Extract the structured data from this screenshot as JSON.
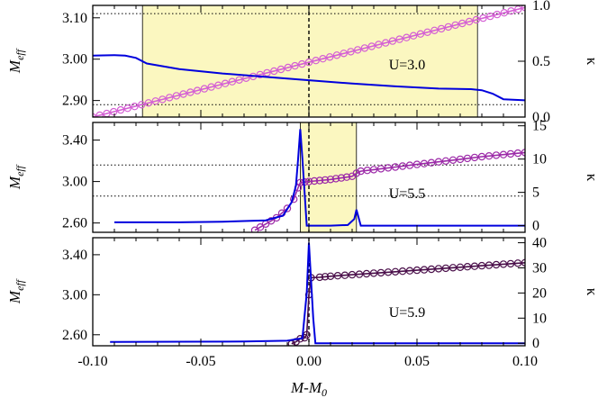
{
  "chart_data": [
    {
      "type": "line",
      "annotation": "U=3.0",
      "ylabel": "M_eff",
      "ylabel_right": "κ",
      "xlim": [
        -0.1,
        0.1
      ],
      "ylim": [
        2.86,
        3.13
      ],
      "ylim_right": [
        0.0,
        1.0
      ],
      "yticks": [
        2.9,
        3.0,
        3.1
      ],
      "ytick_labels": [
        "2.90",
        "3.00",
        "3.10"
      ],
      "yticks_right": [
        0.0,
        0.5,
        1.0
      ],
      "ytick_labels_right": [
        "0.0",
        "0.5",
        "1.0"
      ],
      "shaded_x": [
        -0.077,
        0.078
      ],
      "hlines": [
        2.89,
        3.11
      ],
      "vline": 0.0,
      "series": [
        {
          "role": "M_eff (magenta circles)",
          "color": "#d45fd4",
          "x": [
            -0.1,
            0.1
          ],
          "y": [
            2.86,
            3.125
          ],
          "markers": true
        },
        {
          "role": "kappa (blue)",
          "color": "#0000dd",
          "axis": "right",
          "x": [
            -0.1,
            -0.09,
            -0.085,
            -0.08,
            -0.075,
            -0.06,
            -0.04,
            -0.02,
            0.0,
            0.02,
            0.04,
            0.06,
            0.075,
            0.08,
            0.085,
            0.09,
            0.1
          ],
          "y": [
            0.55,
            0.555,
            0.55,
            0.53,
            0.48,
            0.43,
            0.39,
            0.36,
            0.33,
            0.3,
            0.275,
            0.255,
            0.25,
            0.24,
            0.21,
            0.16,
            0.15
          ]
        }
      ]
    },
    {
      "type": "line",
      "annotation": "U=5.5",
      "ylabel": "M_eff",
      "ylabel_right": "κ",
      "xlim": [
        -0.1,
        0.1
      ],
      "ylim": [
        2.51,
        3.57
      ],
      "ylim_right": [
        -1.0,
        15.5
      ],
      "yticks": [
        2.6,
        3.0,
        3.4
      ],
      "ytick_labels": [
        "2.60",
        "3.00",
        "3.40"
      ],
      "yticks_right": [
        0,
        5,
        10,
        15
      ],
      "ytick_labels_right": [
        "0",
        "5",
        "10",
        "15"
      ],
      "shaded_x": [
        -0.004,
        0.022
      ],
      "hlines": [
        3.16,
        2.86
      ],
      "vline": 0.0,
      "series": [
        {
          "role": "M_eff (purple circles)",
          "color": "#9c2aa8",
          "x": [
            -0.025,
            -0.02,
            -0.015,
            -0.01,
            -0.007,
            -0.005,
            -0.004,
            -0.002,
            0.0,
            0.005,
            0.01,
            0.015,
            0.02,
            0.022,
            0.024,
            0.03,
            0.04,
            0.05,
            0.06,
            0.07,
            0.08,
            0.09,
            0.1
          ],
          "y": [
            2.53,
            2.59,
            2.65,
            2.74,
            2.83,
            2.94,
            2.99,
            2.995,
            3.0,
            3.01,
            3.02,
            3.035,
            3.05,
            3.08,
            3.1,
            3.115,
            3.14,
            3.165,
            3.19,
            3.215,
            3.24,
            3.26,
            3.28
          ],
          "markers": true
        },
        {
          "role": "kappa (blue)",
          "color": "#0000dd",
          "axis": "right",
          "x": [
            -0.09,
            -0.06,
            -0.04,
            -0.02,
            -0.012,
            -0.008,
            -0.006,
            -0.005,
            -0.004,
            -0.003,
            -0.001,
            0.0,
            0.01,
            0.018,
            0.021,
            0.022,
            0.023,
            0.024,
            0.03,
            0.06,
            0.09,
            0.1
          ],
          "y": [
            0.5,
            0.5,
            0.6,
            0.8,
            1.5,
            3.5,
            6.0,
            10.0,
            14.5,
            10.0,
            0.0,
            0.0,
            0.0,
            0.1,
            1.0,
            2.4,
            1.2,
            0.0,
            0.0,
            0.0,
            0.0,
            0.0
          ]
        }
      ]
    },
    {
      "type": "line",
      "annotation": "U=5.9",
      "ylabel": "M_eff",
      "ylabel_right": "κ",
      "xlim": [
        -0.1,
        0.1
      ],
      "ylim": [
        2.49,
        3.57
      ],
      "ylim_right": [
        -1.0,
        42.0
      ],
      "yticks": [
        2.6,
        3.0,
        3.4
      ],
      "ytick_labels": [
        "2.60",
        "3.00",
        "3.40"
      ],
      "yticks_right": [
        0,
        10,
        20,
        30,
        40
      ],
      "ytick_labels_right": [
        "0",
        "10",
        "20",
        "30",
        "40"
      ],
      "xticks": [
        -0.1,
        -0.05,
        0.0,
        0.05,
        0.1
      ],
      "xtick_labels": [
        "-0.10",
        "-0.05",
        "0.00",
        "0.05",
        "0.10"
      ],
      "xlabel": "M-M_0",
      "vline": 0.0,
      "series": [
        {
          "role": "M_eff (dark purple circles)",
          "color": "#4a0f4a",
          "x": [
            -0.008,
            -0.006,
            -0.004,
            -0.002,
            -0.001,
            0.0,
            0.001,
            0.005,
            0.01,
            0.02,
            0.03,
            0.04,
            0.05,
            0.06,
            0.07,
            0.08,
            0.09,
            0.1
          ],
          "y": [
            2.51,
            2.53,
            2.56,
            2.57,
            2.6,
            3.0,
            3.17,
            3.175,
            3.185,
            3.2,
            3.215,
            3.23,
            3.245,
            3.26,
            3.275,
            3.29,
            3.305,
            3.32
          ],
          "markers": true
        },
        {
          "role": "kappa (blue)",
          "color": "#0000dd",
          "axis": "right",
          "x": [
            -0.092,
            -0.06,
            -0.03,
            -0.01,
            -0.003,
            -0.001,
            0.0,
            0.001,
            0.002,
            0.003,
            0.005,
            0.1
          ],
          "y": [
            0.5,
            0.6,
            0.7,
            1.0,
            2.0,
            20.0,
            40.0,
            25.0,
            10.0,
            0.0,
            0.0,
            0.0
          ]
        }
      ]
    }
  ]
}
